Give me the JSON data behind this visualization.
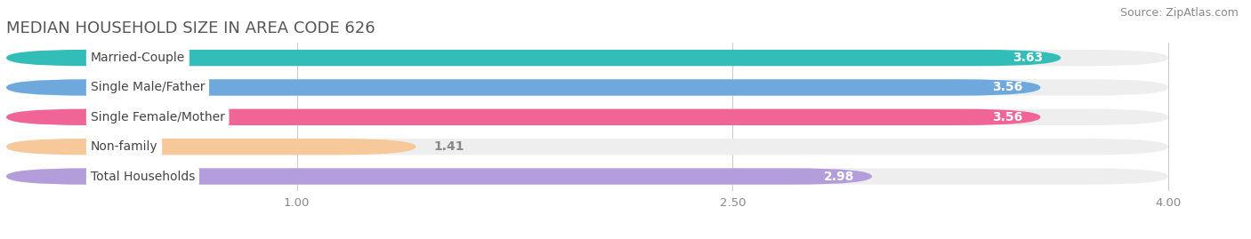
{
  "title": "MEDIAN HOUSEHOLD SIZE IN AREA CODE 626",
  "source": "Source: ZipAtlas.com",
  "categories": [
    "Married-Couple",
    "Single Male/Father",
    "Single Female/Mother",
    "Non-family",
    "Total Households"
  ],
  "values": [
    3.63,
    3.56,
    3.56,
    1.41,
    2.98
  ],
  "bar_colors": [
    "#33bdb8",
    "#6fa8dc",
    "#f06595",
    "#f6c89a",
    "#b39ddb"
  ],
  "bar_bg_colors": [
    "#eeeeee",
    "#eeeeee",
    "#eeeeee",
    "#eeeeee",
    "#eeeeee"
  ],
  "value_text_colors": [
    "white",
    "white",
    "white",
    "white",
    "white"
  ],
  "xlim_data": [
    0,
    4.22
  ],
  "xdata_max": 4.0,
  "xticks": [
    1.0,
    2.5,
    4.0
  ],
  "title_fontsize": 13,
  "source_fontsize": 9,
  "label_fontsize": 10,
  "value_fontsize": 10,
  "background_color": "#ffffff",
  "non_family_value_color": "#888844"
}
